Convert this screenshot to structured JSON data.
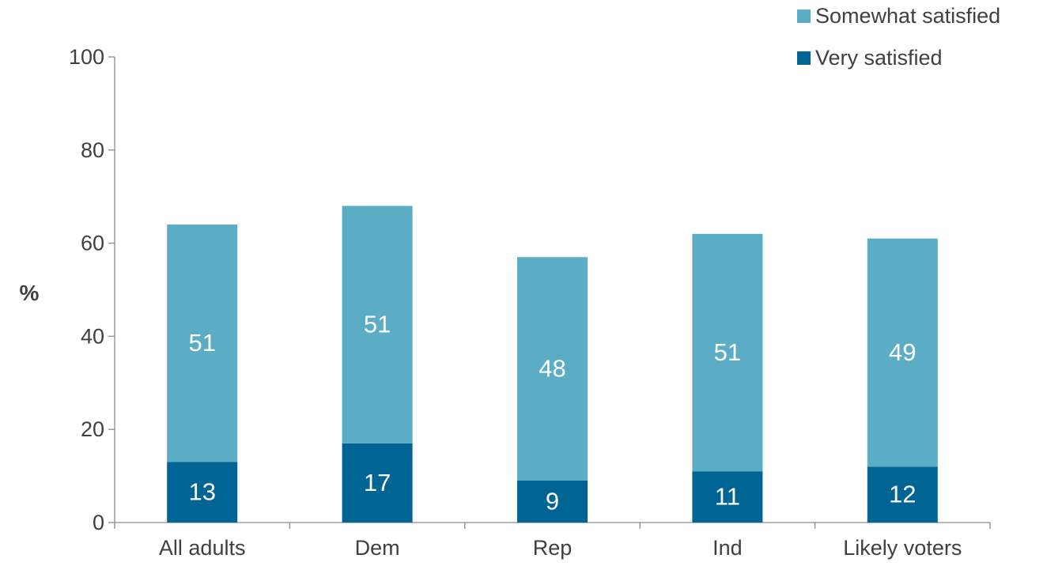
{
  "chart_data": {
    "type": "bar",
    "stacked": true,
    "ylabel": "%",
    "ylim": [
      0,
      100
    ],
    "yticks": [
      0,
      20,
      40,
      60,
      80,
      100
    ],
    "grid": false,
    "legend_position": "top-right",
    "categories": [
      "All adults",
      "Dem",
      "Rep",
      "Ind",
      "Likely voters"
    ],
    "series": [
      {
        "name": "Very satisfied",
        "color": "#006494",
        "values": [
          13,
          17,
          9,
          11,
          12
        ]
      },
      {
        "name": "Somewhat satisfied",
        "color": "#5aadc5",
        "values": [
          51,
          51,
          48,
          51,
          49
        ]
      }
    ]
  },
  "legend": {
    "items": [
      {
        "label": "Somewhat satisfied",
        "color": "#5aadc5"
      },
      {
        "label": "Very satisfied",
        "color": "#006494"
      }
    ]
  }
}
